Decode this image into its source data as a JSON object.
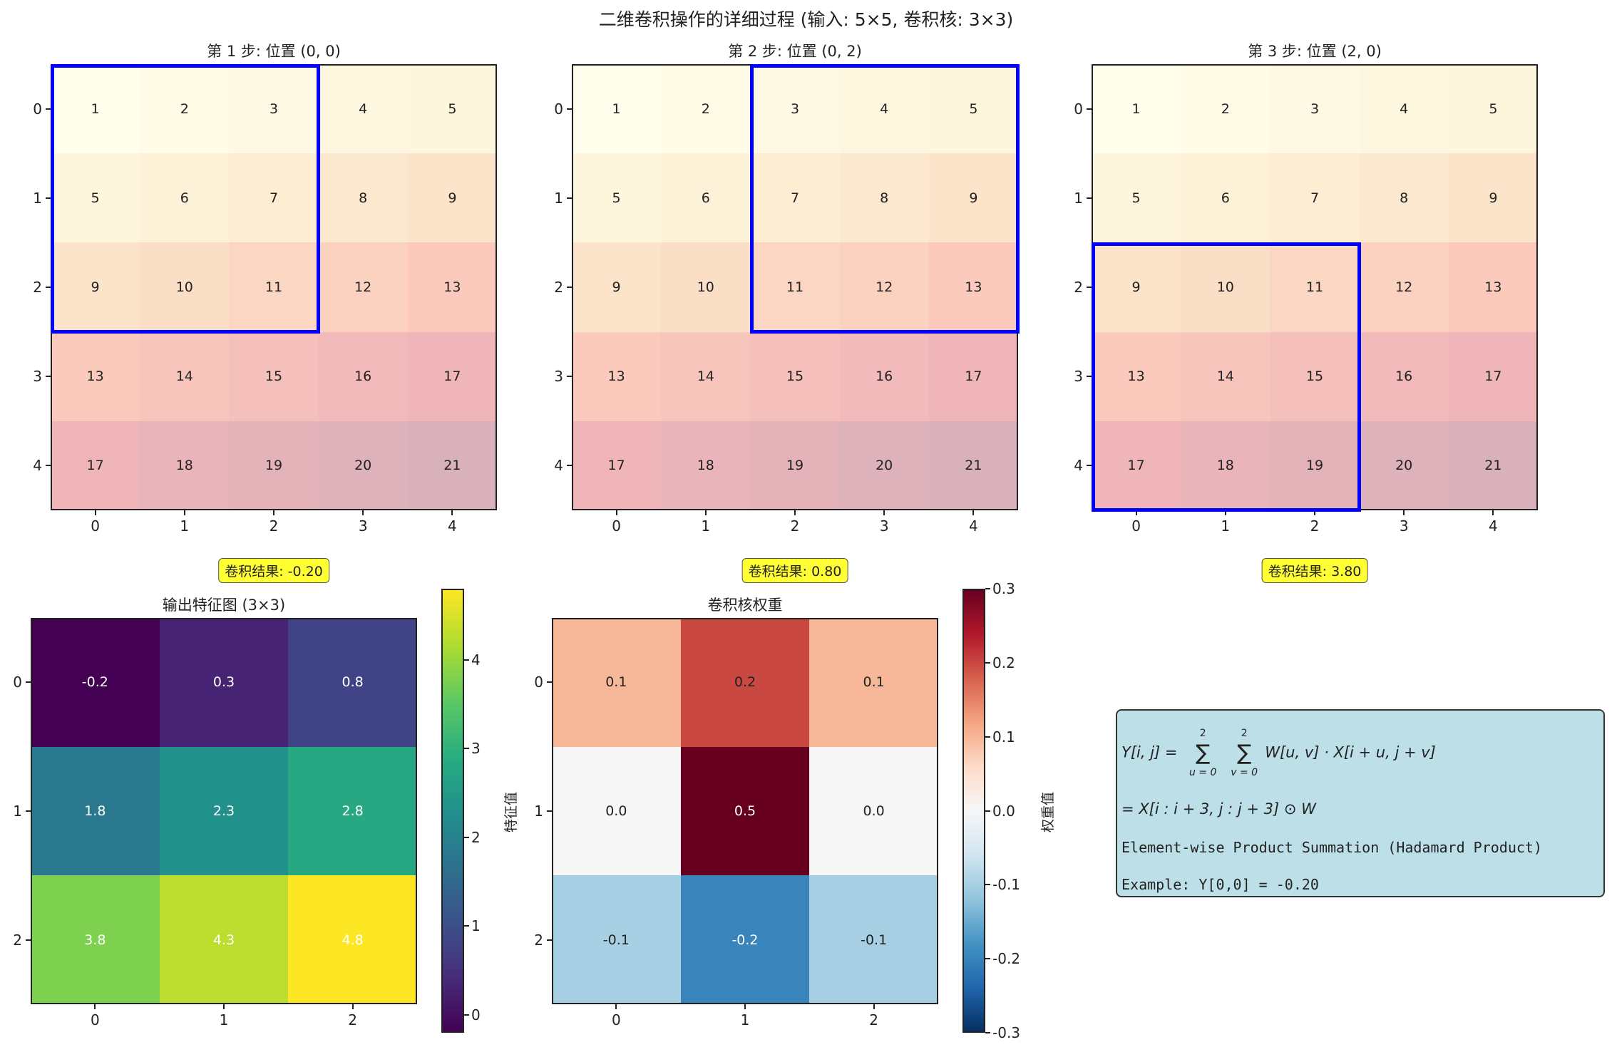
{
  "title": "二维卷积操作的详细过程 (输入: 5×5, 卷积核: 3×3)",
  "chart_data": [
    {
      "type": "heatmap",
      "title": "第 1 步: 位置 (0, 0)",
      "x_ticks": [
        "0",
        "1",
        "2",
        "3",
        "4"
      ],
      "y_ticks": [
        "0",
        "1",
        "2",
        "3",
        "4"
      ],
      "values": [
        [
          1,
          2,
          3,
          4,
          5
        ],
        [
          5,
          6,
          7,
          8,
          9
        ],
        [
          9,
          10,
          11,
          12,
          13
        ],
        [
          13,
          14,
          15,
          16,
          17
        ],
        [
          17,
          18,
          19,
          20,
          21
        ]
      ],
      "highlight": {
        "row": 0,
        "col": 0,
        "size": 3,
        "color": "#0000ff"
      },
      "result_label": "卷积结果: -0.20"
    },
    {
      "type": "heatmap",
      "title": "第 2 步: 位置 (0, 2)",
      "x_ticks": [
        "0",
        "1",
        "2",
        "3",
        "4"
      ],
      "y_ticks": [
        "0",
        "1",
        "2",
        "3",
        "4"
      ],
      "values": [
        [
          1,
          2,
          3,
          4,
          5
        ],
        [
          5,
          6,
          7,
          8,
          9
        ],
        [
          9,
          10,
          11,
          12,
          13
        ],
        [
          13,
          14,
          15,
          16,
          17
        ],
        [
          17,
          18,
          19,
          20,
          21
        ]
      ],
      "highlight": {
        "row": 0,
        "col": 2,
        "size": 3,
        "color": "#0000ff"
      },
      "result_label": "卷积结果: 0.80"
    },
    {
      "type": "heatmap",
      "title": "第 3 步: 位置 (2, 0)",
      "x_ticks": [
        "0",
        "1",
        "2",
        "3",
        "4"
      ],
      "y_ticks": [
        "0",
        "1",
        "2",
        "3",
        "4"
      ],
      "values": [
        [
          1,
          2,
          3,
          4,
          5
        ],
        [
          5,
          6,
          7,
          8,
          9
        ],
        [
          9,
          10,
          11,
          12,
          13
        ],
        [
          13,
          14,
          15,
          16,
          17
        ],
        [
          17,
          18,
          19,
          20,
          21
        ]
      ],
      "highlight": {
        "row": 2,
        "col": 0,
        "size": 3,
        "color": "#0000ff"
      },
      "result_label": "卷积结果: 3.80"
    },
    {
      "type": "heatmap",
      "title": "输出特征图 (3×3)",
      "x_ticks": [
        "0",
        "1",
        "2"
      ],
      "y_ticks": [
        "0",
        "1",
        "2"
      ],
      "values": [
        [
          -0.2,
          0.3,
          0.8
        ],
        [
          1.8,
          2.3,
          2.8
        ],
        [
          3.8,
          4.3,
          4.8
        ]
      ],
      "labels": [
        [
          "-0.2",
          "0.3",
          "0.8"
        ],
        [
          "1.8",
          "2.3",
          "2.8"
        ],
        [
          "3.8",
          "4.3",
          "4.8"
        ]
      ],
      "colormap": "viridis",
      "vlim": [
        -0.2,
        4.8
      ],
      "colorbar": {
        "label": "特征值",
        "ticks": [
          0,
          1,
          2,
          3,
          4
        ],
        "tick_labels": [
          "0",
          "1",
          "2",
          "3",
          "4"
        ]
      }
    },
    {
      "type": "heatmap",
      "title": "卷积核权重",
      "x_ticks": [
        "0",
        "1",
        "2"
      ],
      "y_ticks": [
        "0",
        "1",
        "2"
      ],
      "values": [
        [
          0.1,
          0.2,
          0.1
        ],
        [
          0.0,
          0.5,
          0.0
        ],
        [
          -0.1,
          -0.2,
          -0.1
        ]
      ],
      "labels": [
        [
          "0.1",
          "0.2",
          "0.1"
        ],
        [
          "0.0",
          "0.5",
          "0.0"
        ],
        [
          "-0.1",
          "-0.2",
          "-0.1"
        ]
      ],
      "colormap": "RdBu_r",
      "vlim": [
        -0.3,
        0.3
      ],
      "colorbar": {
        "label": "权重值",
        "ticks": [
          -0.3,
          -0.2,
          -0.1,
          0.0,
          0.1,
          0.2,
          0.3
        ],
        "tick_labels": [
          "-0.3",
          "-0.2",
          "-0.1",
          "0.0",
          "0.1",
          "0.2",
          "0.3"
        ]
      }
    }
  ],
  "formula_box": {
    "line1_lhs": "Y[i, j] = ",
    "sum_upper": "2",
    "sum1_lower": "u = 0",
    "sum2_lower": "v = 0",
    "line1_rhs": "W[u, v] · X[i + u, j + v]",
    "line2": "= X[i : i + 3, j : j + 3] ⊙ W",
    "line3": "Element-wise Product Summation (Hadamard Product)",
    "line4": "Example: Y[0,0] = -0.20",
    "background": "#bddfe8"
  }
}
